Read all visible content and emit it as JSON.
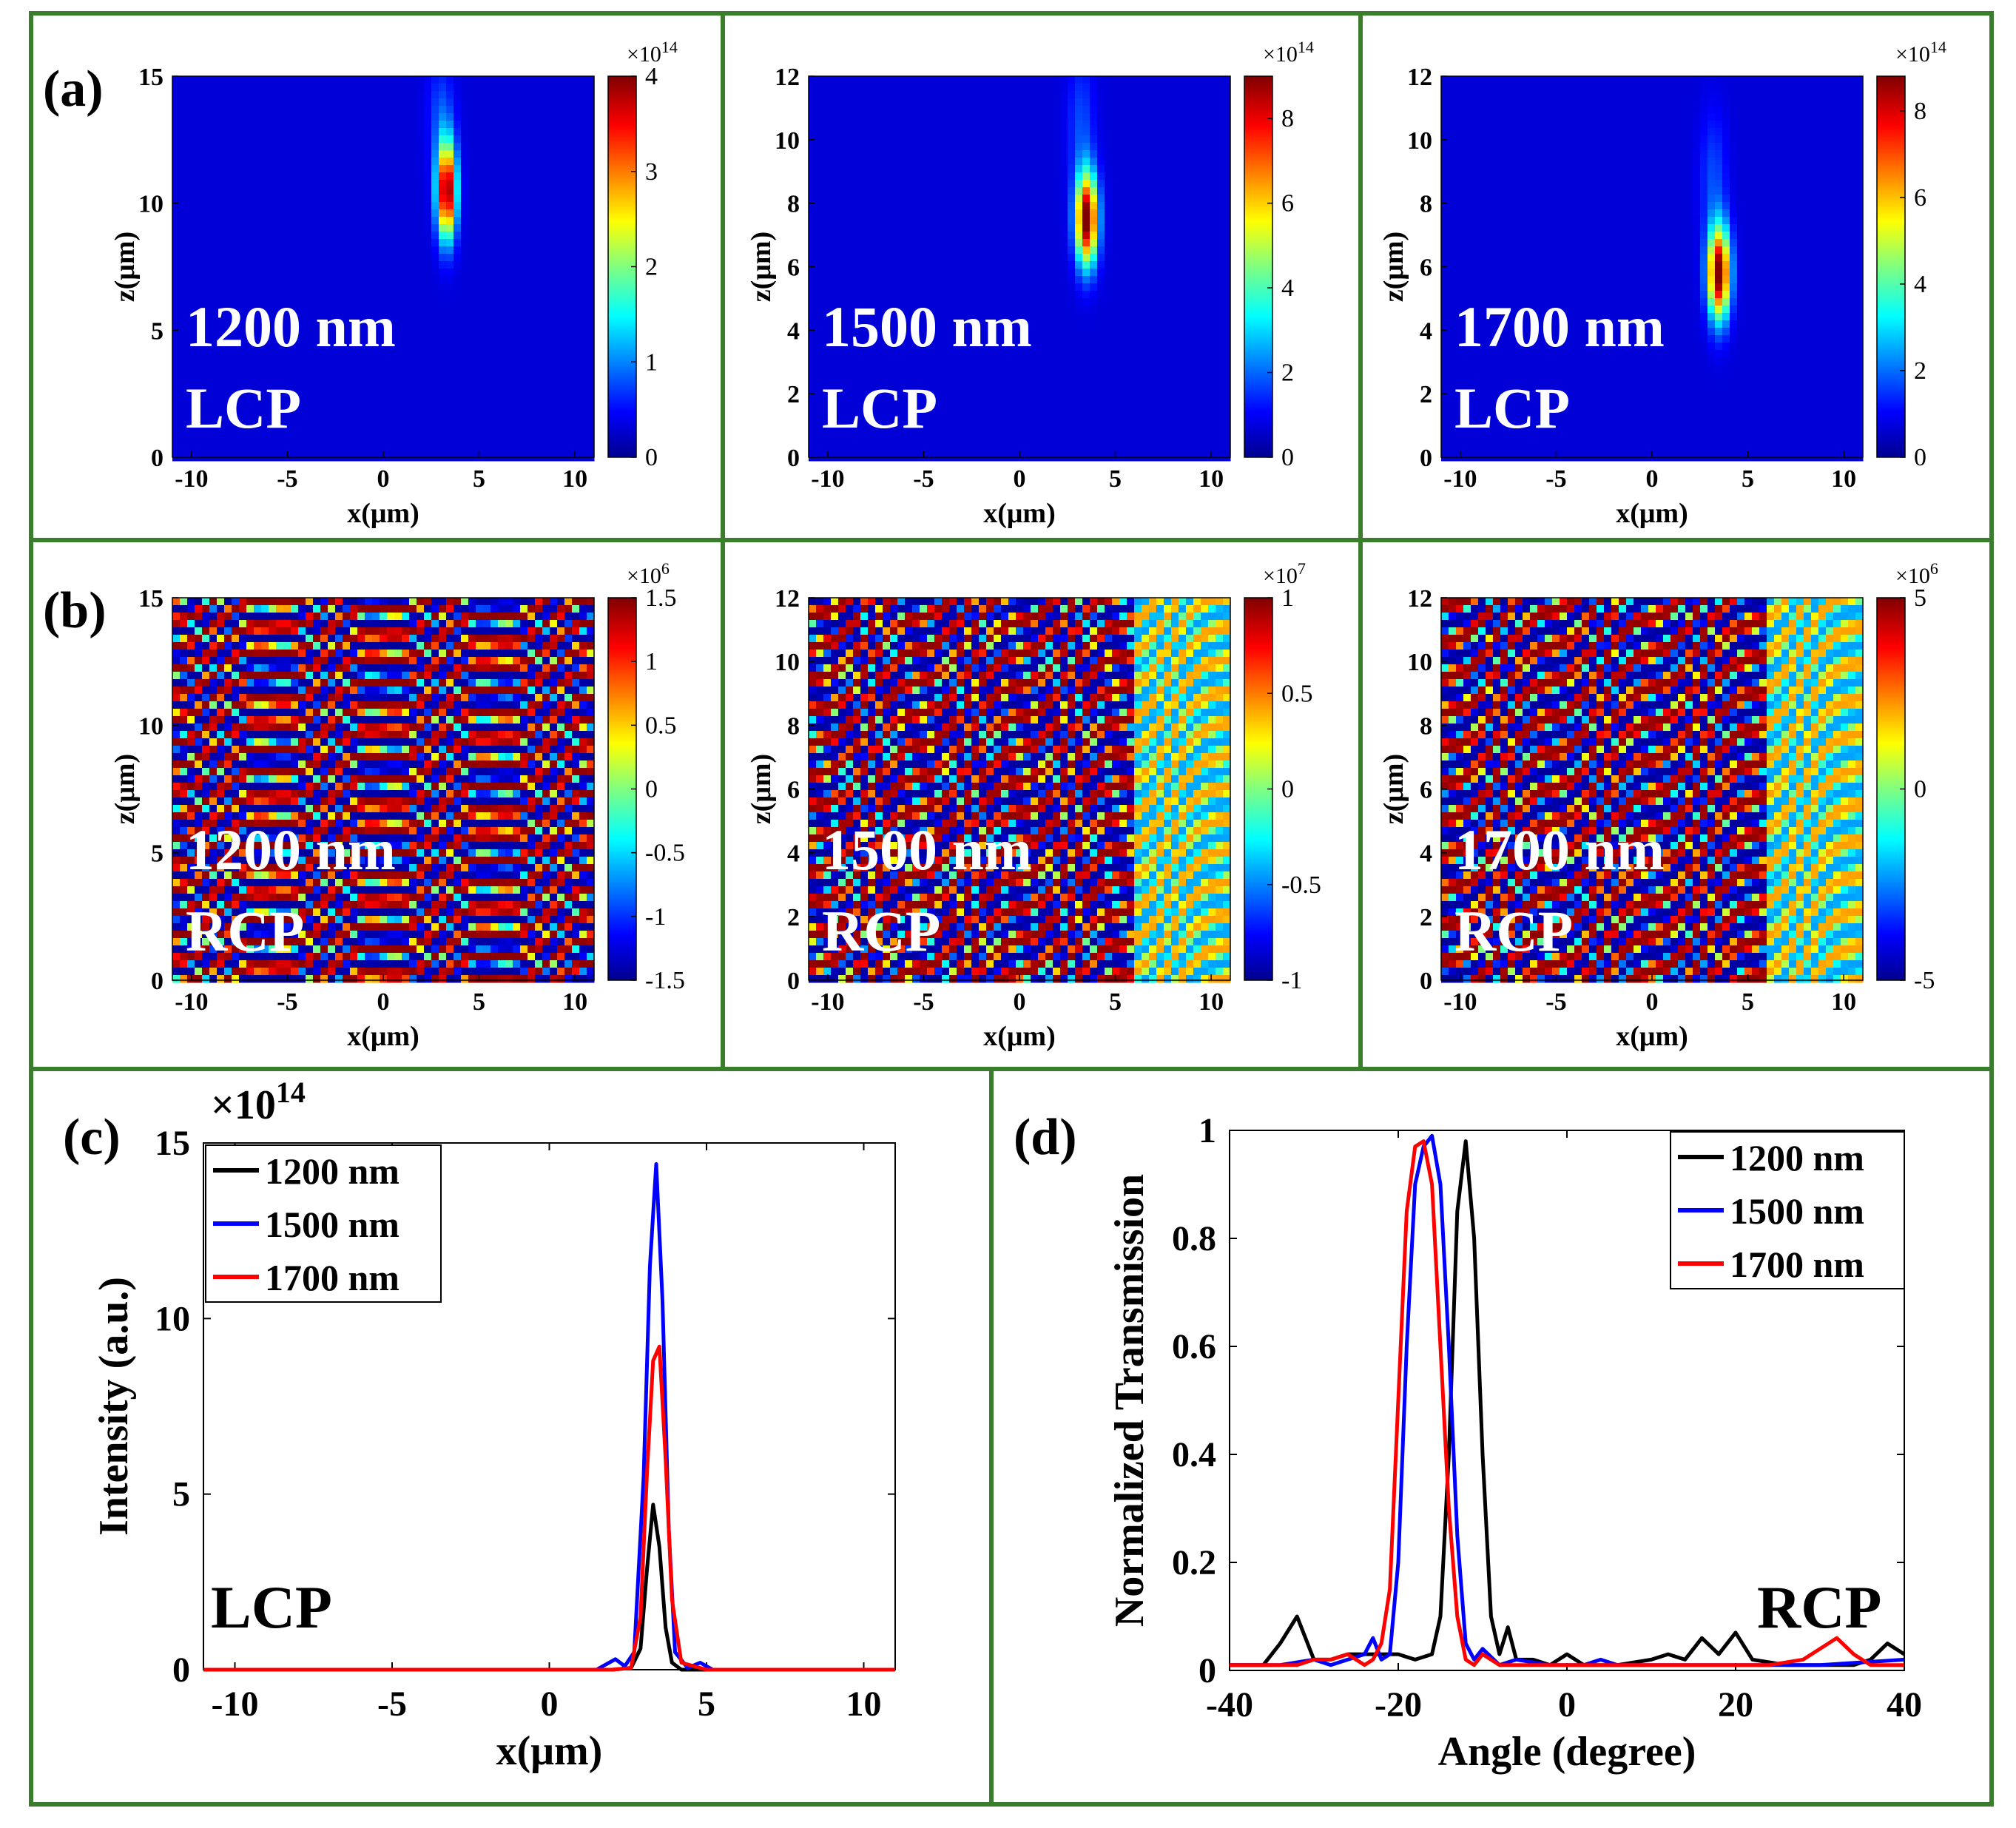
{
  "figure": {
    "border_color": "#3a7d2c",
    "colormap": [
      "#00008f",
      "#0000ff",
      "#0080ff",
      "#00ffff",
      "#80ff80",
      "#ffff00",
      "#ff8000",
      "#ff0000",
      "#800000"
    ]
  },
  "chart_data": [
    {
      "id": "a1",
      "type": "heatmap",
      "panel_label": "(a)",
      "wavelength": "1200 nm",
      "polarization": "LCP",
      "xlabel": "x(μm)",
      "ylabel": "z(μm)",
      "xlim": [
        -11,
        11
      ],
      "ylim": [
        0,
        15
      ],
      "xticks": [
        "-10",
        "-5",
        "0",
        "5",
        "10"
      ],
      "yticks": [
        "0",
        "5",
        "10",
        "15"
      ],
      "colorbar": {
        "multiplier": "×10",
        "exponent": "14",
        "range": [
          0,
          4
        ],
        "ticks": [
          "0",
          "1",
          "2",
          "3",
          "4"
        ]
      },
      "hotspot": {
        "x": 3.3,
        "z": 10.5,
        "sx": 0.35,
        "sz": 1.3
      }
    },
    {
      "id": "a2",
      "type": "heatmap",
      "panel_label": "",
      "wavelength": "1500 nm",
      "polarization": "LCP",
      "xlabel": "x(μm)",
      "ylabel": "z(μm)",
      "xlim": [
        -11,
        11
      ],
      "ylim": [
        0,
        12
      ],
      "xticks": [
        "-10",
        "-5",
        "0",
        "5",
        "10"
      ],
      "yticks": [
        "0",
        "2",
        "4",
        "6",
        "8",
        "10",
        "12"
      ],
      "colorbar": {
        "multiplier": "×10",
        "exponent": "14",
        "range": [
          0,
          9
        ],
        "ticks": [
          "0",
          "2",
          "4",
          "6",
          "8"
        ]
      },
      "hotspot": {
        "x": 3.5,
        "z": 7.5,
        "sx": 0.4,
        "sz": 1.0
      }
    },
    {
      "id": "a3",
      "type": "heatmap",
      "panel_label": "",
      "wavelength": "1700 nm",
      "polarization": "LCP",
      "xlabel": "x(μm)",
      "ylabel": "z(μm)",
      "xlim": [
        -11,
        11
      ],
      "ylim": [
        0,
        12
      ],
      "xticks": [
        "-10",
        "-5",
        "0",
        "5",
        "10"
      ],
      "yticks": [
        "0",
        "2",
        "4",
        "6",
        "8",
        "10",
        "12"
      ],
      "colorbar": {
        "multiplier": "×10",
        "exponent": "14",
        "range": [
          0,
          8.8
        ],
        "ticks": [
          "0",
          "2",
          "4",
          "6",
          "8"
        ]
      },
      "hotspot": {
        "x": 3.5,
        "z": 5.8,
        "sx": 0.4,
        "sz": 1.0
      }
    },
    {
      "id": "b1",
      "type": "heatmap",
      "panel_label": "(b)",
      "wavelength": "1200 nm",
      "polarization": "RCP",
      "xlabel": "x(μm)",
      "ylabel": "z(μm)",
      "xlim": [
        -11,
        11
      ],
      "ylim": [
        0,
        15
      ],
      "xticks": [
        "-10",
        "-5",
        "0",
        "5",
        "10"
      ],
      "yticks": [
        "0",
        "5",
        "10",
        "15"
      ],
      "colorbar": {
        "multiplier": "×10",
        "exponent": "6",
        "range": [
          -1.5,
          1.5
        ],
        "ticks": [
          "-1.5",
          "-1",
          "-0.5",
          "0",
          "0.5",
          "1",
          "1.5"
        ]
      },
      "wave": {
        "kx": 0.18,
        "kz": 2.1,
        "slope": 0.28
      }
    },
    {
      "id": "b2",
      "type": "heatmap",
      "panel_label": "",
      "wavelength": "1500 nm",
      "polarization": "RCP",
      "xlabel": "x(μm)",
      "ylabel": "z(μm)",
      "xlim": [
        -11,
        11
      ],
      "ylim": [
        0,
        12
      ],
      "xticks": [
        "-10",
        "-5",
        "0",
        "5",
        "10"
      ],
      "yticks": [
        "0",
        "2",
        "4",
        "6",
        "8",
        "10",
        "12"
      ],
      "colorbar": {
        "multiplier": "×10",
        "exponent": "7",
        "range": [
          -1,
          1
        ],
        "ticks": [
          "-1",
          "-0.5",
          "0",
          "0.5",
          "1"
        ]
      },
      "wave": {
        "kx": 0.2,
        "kz": 2.0,
        "slope": 0.55
      }
    },
    {
      "id": "b3",
      "type": "heatmap",
      "panel_label": "",
      "wavelength": "1700 nm",
      "polarization": "RCP",
      "xlabel": "x(μm)",
      "ylabel": "z(μm)",
      "xlim": [
        -11,
        11
      ],
      "ylim": [
        0,
        12
      ],
      "xticks": [
        "-10",
        "-5",
        "0",
        "5",
        "10"
      ],
      "yticks": [
        "0",
        "2",
        "4",
        "6",
        "8",
        "10",
        "12"
      ],
      "colorbar": {
        "multiplier": "×10",
        "exponent": "6",
        "range": [
          -5,
          5
        ],
        "ticks": [
          "-5",
          "0",
          "5"
        ]
      },
      "wave": {
        "kx": 0.2,
        "kz": 1.8,
        "slope": 0.6
      }
    },
    {
      "id": "c",
      "type": "line",
      "panel_label": "(c)",
      "xlabel": "x(μm)",
      "ylabel": "Intensity (a.u.)",
      "xlim": [
        -11,
        11
      ],
      "ylim": [
        0,
        15
      ],
      "xticks": [
        "-10",
        "-5",
        "0",
        "5",
        "10"
      ],
      "yticks": [
        "0",
        "5",
        "10",
        "15"
      ],
      "multiplier": "×10",
      "exponent": "14",
      "annotation": "LCP",
      "series": [
        {
          "name": "1200 nm",
          "color": "#000000",
          "x": [
            -11,
            2.0,
            2.6,
            2.9,
            3.1,
            3.3,
            3.5,
            3.7,
            3.9,
            4.2,
            5.0,
            11
          ],
          "y": [
            0,
            0,
            0.05,
            0.6,
            2.8,
            4.7,
            3.5,
            1.2,
            0.2,
            0,
            0,
            0
          ]
        },
        {
          "name": "1500 nm",
          "color": "#0000ff",
          "x": [
            -11,
            1.5,
            2.1,
            2.4,
            2.7,
            3.0,
            3.2,
            3.4,
            3.6,
            3.8,
            4.0,
            4.4,
            4.8,
            5.2,
            11
          ],
          "y": [
            0,
            0,
            0.3,
            0.1,
            0.5,
            5.5,
            11.5,
            14.4,
            10.5,
            4.0,
            0.5,
            0.05,
            0.2,
            0,
            0
          ]
        },
        {
          "name": "1700 nm",
          "color": "#ff0000",
          "x": [
            -11,
            2.0,
            2.6,
            2.9,
            3.1,
            3.3,
            3.5,
            3.7,
            3.9,
            4.2,
            4.6,
            5.0,
            11
          ],
          "y": [
            0,
            0,
            0.05,
            1.5,
            5.5,
            8.8,
            9.2,
            6.0,
            2.0,
            0.2,
            0.1,
            0,
            0
          ]
        }
      ]
    },
    {
      "id": "d",
      "type": "line",
      "panel_label": "(d)",
      "xlabel": "Angle (degree)",
      "ylabel": "Normalized Transmission",
      "xlim": [
        -40,
        40
      ],
      "ylim": [
        0,
        1
      ],
      "xticks": [
        "-40",
        "-20",
        "0",
        "20",
        "40"
      ],
      "yticks": [
        "0",
        "0.2",
        "0.4",
        "0.6",
        "0.8",
        "1"
      ],
      "annotation": "RCP",
      "series": [
        {
          "name": "1200 nm",
          "color": "#000000",
          "x": [
            -40,
            -36,
            -34,
            -32,
            -30,
            -28,
            -26,
            -24,
            -22,
            -20,
            -18,
            -16,
            -15,
            -14,
            -13,
            -12,
            -11,
            -10,
            -9,
            -8,
            -7,
            -6,
            -4,
            -2,
            0,
            2,
            6,
            10,
            12,
            14,
            16,
            18,
            20,
            22,
            26,
            30,
            34,
            36,
            38,
            40
          ],
          "y": [
            0.01,
            0.01,
            0.05,
            0.1,
            0.02,
            0.02,
            0.03,
            0.03,
            0.03,
            0.03,
            0.02,
            0.03,
            0.1,
            0.4,
            0.85,
            0.98,
            0.8,
            0.4,
            0.1,
            0.03,
            0.08,
            0.02,
            0.02,
            0.01,
            0.03,
            0.01,
            0.01,
            0.02,
            0.03,
            0.02,
            0.06,
            0.03,
            0.07,
            0.02,
            0.01,
            0.01,
            0.01,
            0.02,
            0.05,
            0.03
          ]
        },
        {
          "name": "1500 nm",
          "color": "#0000ff",
          "x": [
            -40,
            -34,
            -30,
            -28,
            -26,
            -24,
            -23,
            -22,
            -21,
            -20,
            -19,
            -18,
            -17,
            -16,
            -15,
            -14,
            -13,
            -12,
            -11,
            -10,
            -8,
            -6,
            -2,
            2,
            4,
            6,
            10,
            20,
            30,
            40
          ],
          "y": [
            0.01,
            0.01,
            0.02,
            0.01,
            0.02,
            0.03,
            0.06,
            0.02,
            0.03,
            0.2,
            0.6,
            0.9,
            0.97,
            0.99,
            0.9,
            0.6,
            0.25,
            0.05,
            0.02,
            0.04,
            0.01,
            0.02,
            0.01,
            0.01,
            0.02,
            0.01,
            0.01,
            0.01,
            0.01,
            0.02
          ]
        },
        {
          "name": "1700 nm",
          "color": "#ff0000",
          "x": [
            -40,
            -32,
            -30,
            -28,
            -26,
            -25,
            -24,
            -23,
            -22,
            -21,
            -20,
            -19,
            -18,
            -17,
            -16,
            -15,
            -14,
            -13,
            -12,
            -11,
            -10,
            -9,
            -8,
            -6,
            -2,
            10,
            24,
            28,
            30,
            32,
            34,
            36,
            40
          ],
          "y": [
            0.01,
            0.01,
            0.02,
            0.02,
            0.03,
            0.02,
            0.01,
            0.02,
            0.05,
            0.15,
            0.5,
            0.85,
            0.97,
            0.98,
            0.9,
            0.6,
            0.3,
            0.1,
            0.02,
            0.01,
            0.03,
            0.02,
            0.01,
            0.01,
            0.01,
            0.01,
            0.01,
            0.02,
            0.04,
            0.06,
            0.03,
            0.01,
            0.01
          ]
        }
      ]
    }
  ]
}
